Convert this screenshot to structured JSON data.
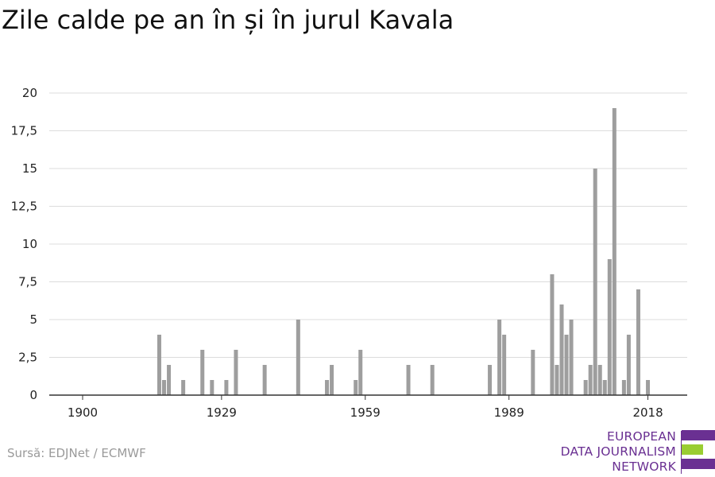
{
  "title": "Zile calde pe an în și în jurul Kavala",
  "source": "Sursă: EDJNet / ECMWF",
  "logo": {
    "lines": [
      "EUROPEAN",
      "DATA JOURNALISM",
      "NETWORK"
    ],
    "colors": {
      "purple": "#6a3092",
      "green": "#9acd32"
    }
  },
  "colors": {
    "bar": "#9e9e9e",
    "grid": "#dcdcdc",
    "axis": "#333333"
  },
  "chart_data": {
    "type": "bar",
    "title": "Zile calde pe an în și în jurul Kavala",
    "xlabel": "",
    "ylabel": "",
    "xlim": [
      1900,
      2020
    ],
    "ylim": [
      0,
      20
    ],
    "grid": true,
    "yticks": [
      0,
      2.5,
      5,
      7.5,
      10,
      12.5,
      15,
      17.5,
      20
    ],
    "ytick_labels": [
      "0",
      "2,5",
      "5",
      "7,5",
      "10",
      "12,5",
      "15",
      "17,5",
      "20"
    ],
    "xticks": [
      1900,
      1929,
      1959,
      1989,
      2018
    ],
    "xtick_labels": [
      "1900",
      "1929",
      "1959",
      "1989",
      "2018"
    ],
    "x": [
      1916,
      1917,
      1918,
      1921,
      1925,
      1927,
      1930,
      1932,
      1938,
      1945,
      1951,
      1952,
      1957,
      1958,
      1968,
      1973,
      1985,
      1987,
      1988,
      1994,
      1998,
      1999,
      2000,
      2001,
      2002,
      2005,
      2006,
      2007,
      2008,
      2009,
      2010,
      2011,
      2013,
      2014,
      2016,
      2018
    ],
    "values": [
      4,
      1,
      2,
      1,
      3,
      1,
      1,
      3,
      2,
      5,
      1,
      2,
      1,
      3,
      2,
      2,
      2,
      5,
      4,
      3,
      8,
      2,
      6,
      4,
      5,
      1,
      2,
      15,
      2,
      1,
      9,
      19,
      1,
      4,
      7,
      1
    ]
  }
}
